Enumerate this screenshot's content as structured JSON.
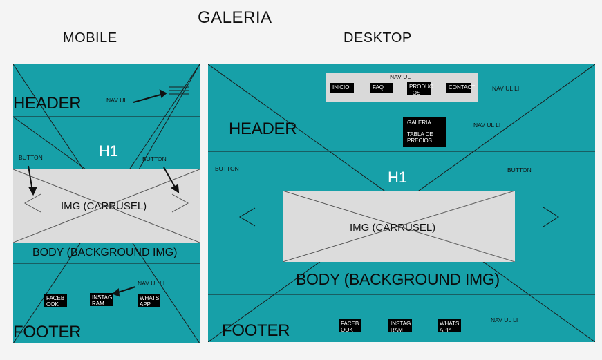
{
  "page": {
    "title": "GALERIA"
  },
  "mobile": {
    "heading": "MOBILE",
    "header": "HEADER",
    "h1": "H1",
    "nav_label": "NAV UL",
    "button_left": "BUTTON",
    "button_right": "BUTTON",
    "carousel": "IMG (CARRUSEL)",
    "body": "BODY (BACKGROUND IMG)",
    "footer_nav_label": "NAV UL LI",
    "footer_links": [
      {
        "line1": "FACEB",
        "line2": "OOK"
      },
      {
        "line1": "INSTAG",
        "line2": "RAM"
      },
      {
        "line1": "WHATS",
        "line2": "APP"
      }
    ],
    "footer": "FOOTER"
  },
  "desktop": {
    "heading": "DESKTOP",
    "nav_label": "NAV UL",
    "nav_items": [
      "INICIO",
      "FAQ",
      "PRODUC TOS",
      "CONTACT"
    ],
    "nav_li_label": "NAV UL LI",
    "dropdown": {
      "item1": "GALERIA",
      "item2": "TABLA DE PRECIOS"
    },
    "dropdown_label": "NAV UL LI",
    "header": "HEADER",
    "h1": "H1",
    "button_left": "BUTTON",
    "button_right": "BUTTON",
    "carousel": "IMG (CARRUSEL)",
    "body": "BODY (BACKGROUND IMG)",
    "footer": "FOOTER",
    "footer_links": [
      {
        "line1": "FACEB",
        "line2": "OOK"
      },
      {
        "line1": "INSTAG",
        "line2": "RAM"
      },
      {
        "line1": "WHATS",
        "line2": "APP"
      }
    ],
    "footer_nav_label": "NAV UL LI"
  },
  "colors": {
    "teal": "#17a0a8",
    "carousel": "#dcdcdc",
    "navbar": "#d9d9d9",
    "box": "#000000"
  }
}
